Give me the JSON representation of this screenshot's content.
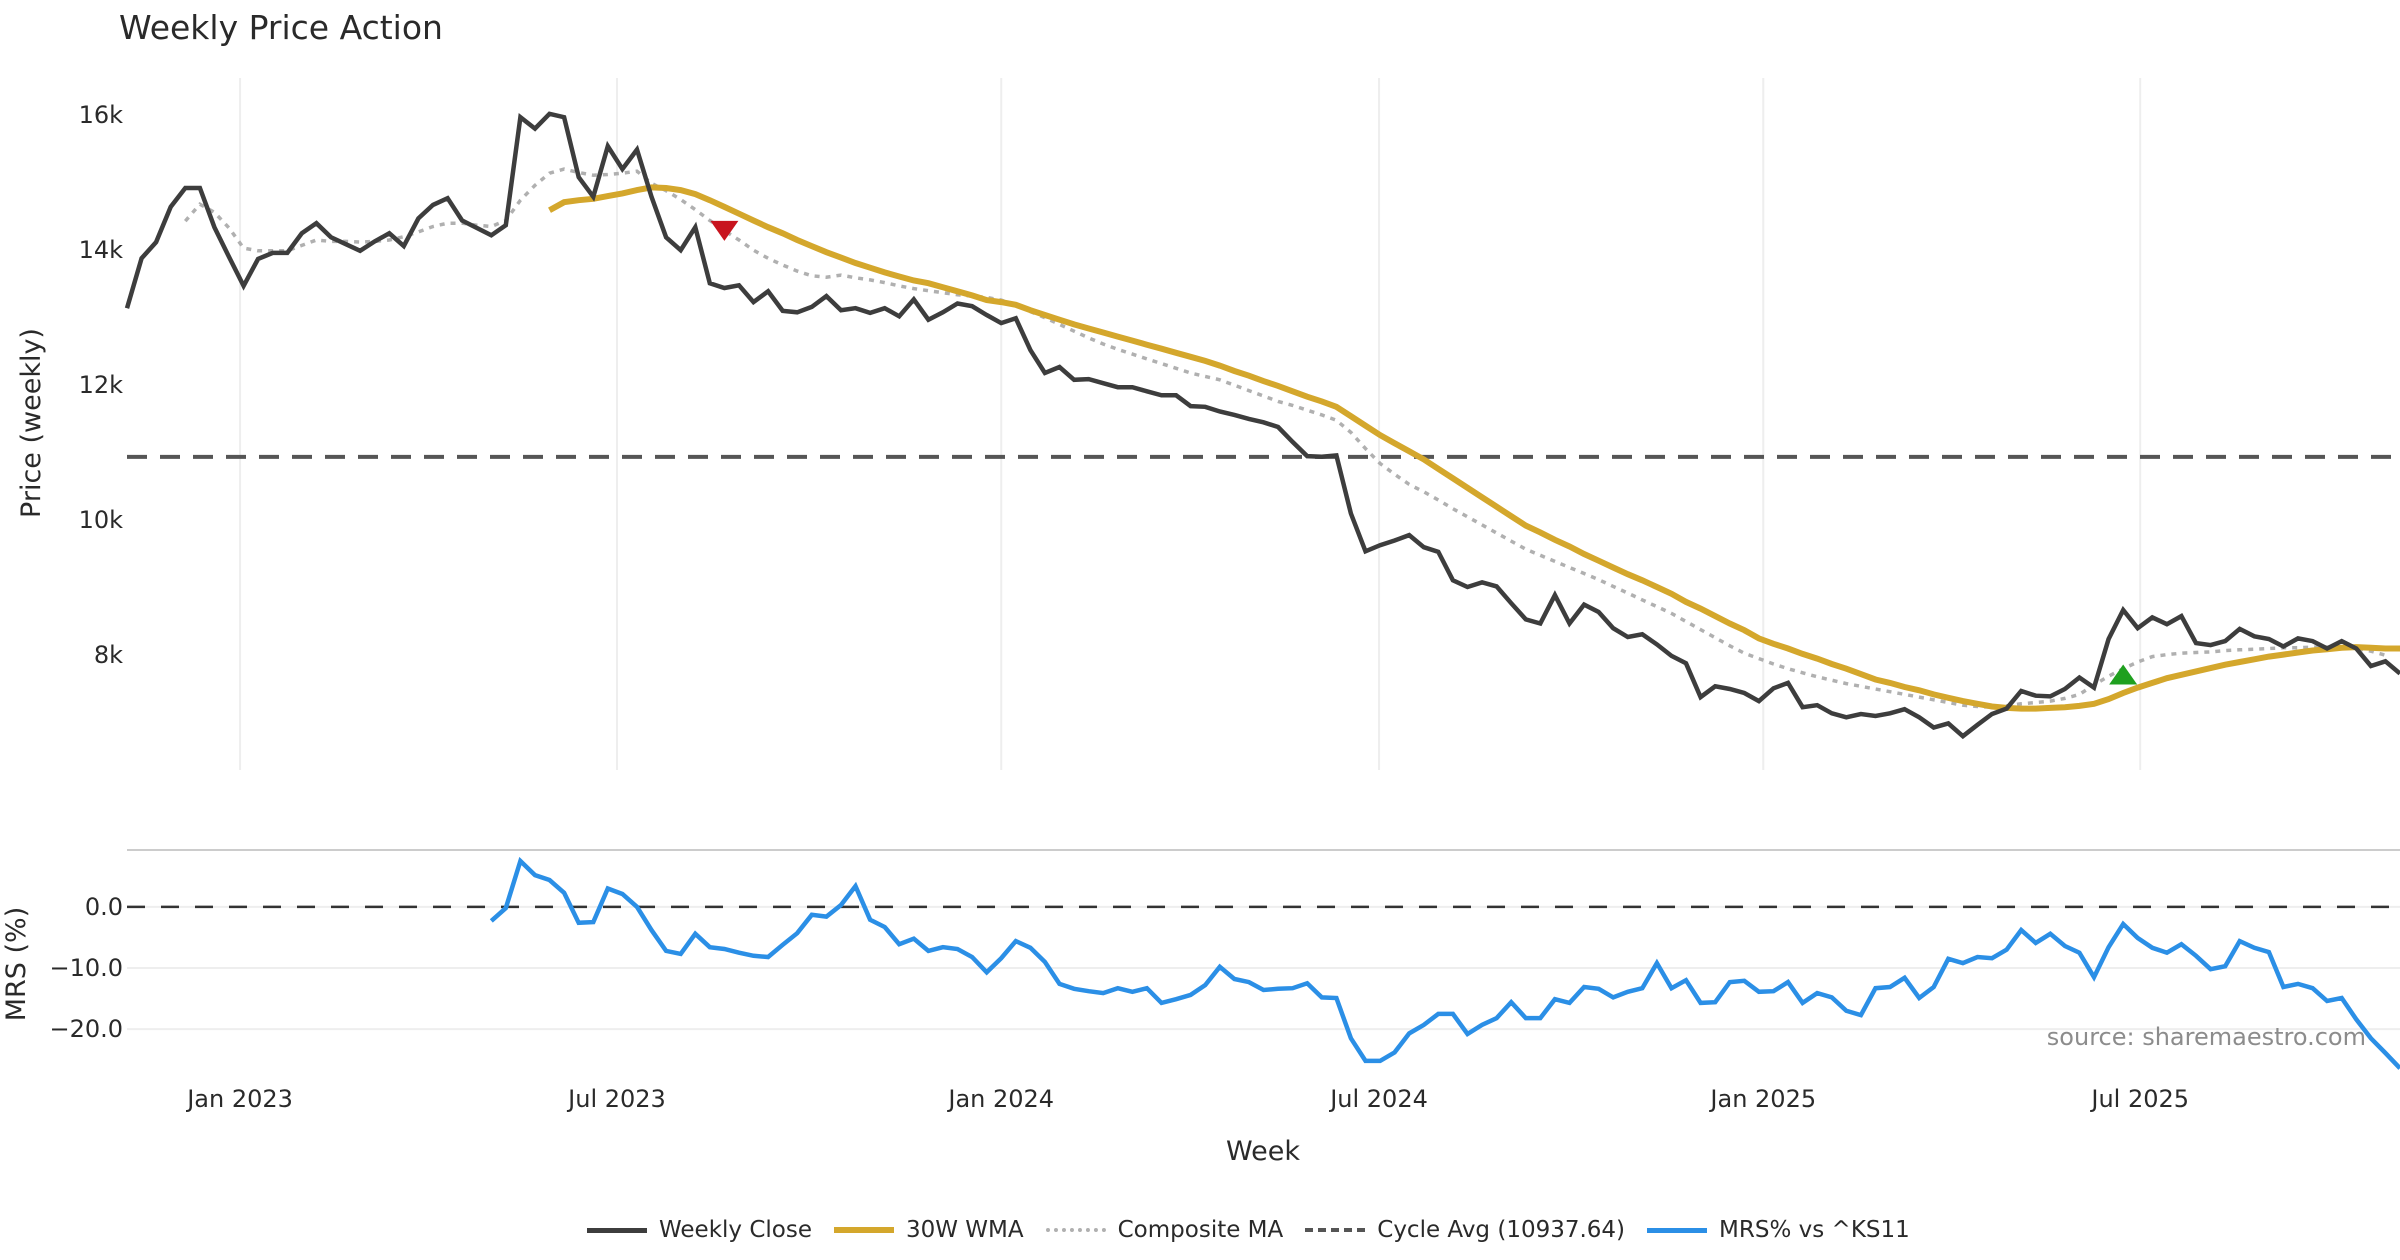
{
  "title": "Weekly Price Action",
  "source_text": "source: sharemaestro.com",
  "legend": [
    {
      "key": "close",
      "label": "Weekly Close"
    },
    {
      "key": "wma",
      "label": "30W WMA"
    },
    {
      "key": "composite",
      "label": "Composite MA"
    },
    {
      "key": "cycle",
      "label": "Cycle Avg (10937.64)"
    },
    {
      "key": "mrs",
      "label": "MRS% vs ^KS11"
    }
  ],
  "colors": {
    "close": "#3d3d3d",
    "wma": "#d4a72c",
    "composite": "#b0b0b0",
    "cycle": "#555555",
    "mrs": "#2b8fe6",
    "sell_marker": "#c8141e",
    "buy_marker": "#1fa01f",
    "grid": "#eeeeee",
    "source": "#8c8c8c"
  },
  "chart_data": [
    {
      "type": "line",
      "panel": "price",
      "title": "Weekly Price Action",
      "xlabel": "Week",
      "ylabel": "Price (weekly)",
      "x_unit": "week index",
      "xlim": [
        0,
        156
      ],
      "ylim": [
        6300,
        16550
      ],
      "grid": true,
      "x_ticks": [
        {
          "x": 7.76,
          "label": "Jan 2023"
        },
        {
          "x": 33.63,
          "label": "Jul 2023"
        },
        {
          "x": 60.0,
          "label": "Jan 2024"
        },
        {
          "x": 85.93,
          "label": "Jul 2024"
        },
        {
          "x": 112.3,
          "label": "Jan 2025"
        },
        {
          "x": 138.17,
          "label": "Jul 2025"
        }
      ],
      "y_ticks": [
        {
          "y": 16000,
          "label": "16k"
        },
        {
          "y": 14000,
          "label": "14k"
        },
        {
          "y": 12000,
          "label": "12k"
        },
        {
          "y": 10000,
          "label": "10k"
        },
        {
          "y": 8000,
          "label": "8k"
        }
      ],
      "hlines": [
        {
          "name": "Cycle Avg (10937.64)",
          "y": 10937.64
        }
      ],
      "series": [
        {
          "name": "Weekly Close",
          "start": 0,
          "values": [
            13140,
            13880,
            14120,
            14640,
            14920,
            14920,
            14340,
            13900,
            13470,
            13870,
            13960,
            13960,
            14250,
            14400,
            14190,
            14090,
            13990,
            14130,
            14250,
            14060,
            14470,
            14670,
            14770,
            14440,
            14330,
            14220,
            14370,
            15970,
            15800,
            16020,
            15970,
            15080,
            14790,
            15540,
            15200,
            15490,
            14790,
            14190,
            14000,
            14340,
            13510,
            13440,
            13480,
            13230,
            13390,
            13100,
            13080,
            13160,
            13320,
            13110,
            13140,
            13070,
            13140,
            13020,
            13270,
            12970,
            13080,
            13210,
            13170,
            13040,
            12920,
            12990,
            12520,
            12180,
            12270,
            12080,
            12090,
            12030,
            11970,
            11970,
            11910,
            11850,
            11850,
            11690,
            11680,
            11610,
            11560,
            11500,
            11450,
            11380,
            11160,
            10950,
            10940,
            10960,
            10100,
            9540,
            9630,
            9700,
            9780,
            9600,
            9530,
            9110,
            9010,
            9080,
            9020,
            8770,
            8530,
            8470,
            8890,
            8470,
            8750,
            8640,
            8400,
            8270,
            8310,
            8160,
            7990,
            7880,
            7380,
            7540,
            7500,
            7440,
            7320,
            7510,
            7590,
            7230,
            7260,
            7140,
            7080,
            7130,
            7100,
            7140,
            7200,
            7080,
            6930,
            6990,
            6800,
            6970,
            7130,
            7210,
            7470,
            7400,
            7390,
            7500,
            7670,
            7520,
            8240,
            8670,
            8400,
            8560,
            8460,
            8580,
            8180,
            8150,
            8210,
            8390,
            8280,
            8240,
            8130,
            8250,
            8210,
            8100,
            8210,
            8100,
            7840,
            7910,
            7730
          ]
        },
        {
          "name": "30W WMA",
          "start": 29,
          "values": [
            14590,
            14710,
            14740,
            14760,
            14800,
            14840,
            14890,
            14930,
            14920,
            14890,
            14830,
            14740,
            14640,
            14540,
            14440,
            14340,
            14250,
            14150,
            14060,
            13970,
            13890,
            13810,
            13740,
            13670,
            13610,
            13550,
            13510,
            13450,
            13390,
            13330,
            13260,
            13230,
            13190,
            13110,
            13040,
            12970,
            12900,
            12840,
            12780,
            12720,
            12660,
            12600,
            12540,
            12480,
            12420,
            12360,
            12290,
            12210,
            12140,
            12060,
            11990,
            11910,
            11830,
            11760,
            11680,
            11540,
            11400,
            11260,
            11140,
            11020,
            10900,
            10760,
            10620,
            10480,
            10340,
            10200,
            10060,
            9920,
            9820,
            9710,
            9610,
            9500,
            9400,
            9300,
            9200,
            9110,
            9010,
            8910,
            8790,
            8690,
            8580,
            8470,
            8370,
            8250,
            8170,
            8100,
            8020,
            7950,
            7870,
            7800,
            7720,
            7640,
            7590,
            7530,
            7480,
            7420,
            7370,
            7320,
            7280,
            7240,
            7220,
            7210,
            7210,
            7220,
            7230,
            7250,
            7280,
            7350,
            7440,
            7520,
            7590,
            7660,
            7710,
            7760,
            7810,
            7860,
            7900,
            7940,
            7980,
            8010,
            8040,
            8070,
            8090,
            8110,
            8120,
            8110,
            8100,
            8100
          ]
        },
        {
          "name": "Composite MA",
          "start": 4,
          "values": [
            14430,
            14680,
            14560,
            14330,
            14030,
            13990,
            13990,
            13990,
            14070,
            14150,
            14130,
            14130,
            14120,
            14130,
            14150,
            14200,
            14270,
            14350,
            14400,
            14400,
            14370,
            14350,
            14440,
            14740,
            14960,
            15140,
            15200,
            15150,
            15110,
            15120,
            15140,
            15170,
            14990,
            14880,
            14750,
            14600,
            14440,
            14290,
            14150,
            14000,
            13880,
            13780,
            13690,
            13620,
            13600,
            13630,
            13590,
            13560,
            13520,
            13470,
            13430,
            13400,
            13370,
            13340,
            13320,
            13300,
            13260,
            13180,
            13090,
            13000,
            12900,
            12800,
            12700,
            12610,
            12530,
            12460,
            12390,
            12320,
            12250,
            12180,
            12130,
            12080,
            12000,
            11920,
            11840,
            11760,
            11700,
            11630,
            11560,
            11480,
            11300,
            11060,
            10840,
            10680,
            10530,
            10420,
            10300,
            10170,
            10050,
            9930,
            9810,
            9690,
            9570,
            9480,
            9390,
            9300,
            9210,
            9120,
            9020,
            8920,
            8820,
            8720,
            8620,
            8500,
            8380,
            8260,
            8140,
            8030,
            7950,
            7870,
            7800,
            7740,
            7680,
            7630,
            7580,
            7540,
            7500,
            7460,
            7420,
            7380,
            7340,
            7300,
            7260,
            7240,
            7230,
            7250,
            7280,
            7300,
            7320,
            7360,
            7420,
            7560,
            7690,
            7800,
            7900,
            7980,
            8010,
            8030,
            8040,
            8050,
            8070,
            8080,
            8090,
            8100,
            8110,
            8110,
            8120,
            8120,
            8120,
            8100,
            8060,
            8000
          ]
        }
      ],
      "markers": [
        {
          "name": "sell-signal",
          "shape": "triangle-down",
          "x": 41,
          "y": 14300
        },
        {
          "name": "buy-signal",
          "shape": "triangle-up",
          "x": 137,
          "y": 7700
        }
      ]
    },
    {
      "type": "line",
      "panel": "mrs",
      "ylabel": "MRS (%)",
      "xlim": [
        0,
        156
      ],
      "ylim": [
        -27.5,
        9.3
      ],
      "grid": true,
      "y_ticks": [
        {
          "y": 0,
          "label": "0.0"
        },
        {
          "y": -10,
          "label": "−10.0"
        },
        {
          "y": -20,
          "label": "−20.0"
        }
      ],
      "hlines": [
        {
          "name": "zero",
          "y": 0
        }
      ],
      "series": [
        {
          "name": "MRS% vs ^KS11",
          "start": 25,
          "values": [
            -2.3,
            -0.2,
            7.5,
            5.2,
            4.4,
            2.3,
            -2.6,
            -2.5,
            3.0,
            2.1,
            0.0,
            -3.8,
            -7.2,
            -7.7,
            -4.4,
            -6.6,
            -6.9,
            -7.5,
            -8.0,
            -8.2,
            -6.2,
            -4.3,
            -1.3,
            -1.6,
            0.3,
            3.4,
            -2.1,
            -3.3,
            -6.1,
            -5.2,
            -7.2,
            -6.6,
            -6.9,
            -8.2,
            -10.7,
            -8.4,
            -5.6,
            -6.7,
            -9.0,
            -12.6,
            -13.4,
            -13.8,
            -14.1,
            -13.3,
            -13.9,
            -13.3,
            -15.7,
            -15.1,
            -14.4,
            -12.8,
            -9.8,
            -11.8,
            -12.3,
            -13.6,
            -13.4,
            -13.3,
            -12.5,
            -14.8,
            -14.9,
            -21.5,
            -25.2,
            -25.2,
            -23.8,
            -20.7,
            -19.3,
            -17.5,
            -17.5,
            -20.8,
            -19.3,
            -18.2,
            -15.6,
            -18.2,
            -18.2,
            -15.1,
            -15.7,
            -13.1,
            -13.4,
            -14.8,
            -13.9,
            -13.3,
            -9.2,
            -13.3,
            -12.0,
            -15.7,
            -15.6,
            -12.3,
            -12.1,
            -13.9,
            -13.8,
            -12.3,
            -15.7,
            -14.1,
            -14.8,
            -17.0,
            -17.7,
            -13.3,
            -13.1,
            -11.6,
            -14.9,
            -13.1,
            -8.5,
            -9.2,
            -8.2,
            -8.4,
            -7.0,
            -3.8,
            -5.9,
            -4.4,
            -6.4,
            -7.5,
            -11.5,
            -6.6,
            -2.8,
            -5.1,
            -6.7,
            -7.5,
            -6.1,
            -8.0,
            -10.2,
            -9.7,
            -5.6,
            -6.7,
            -7.4,
            -13.1,
            -12.6,
            -13.3,
            -15.4,
            -14.9,
            -18.4,
            -21.5,
            -23.9,
            -26.4
          ]
        }
      ]
    }
  ]
}
